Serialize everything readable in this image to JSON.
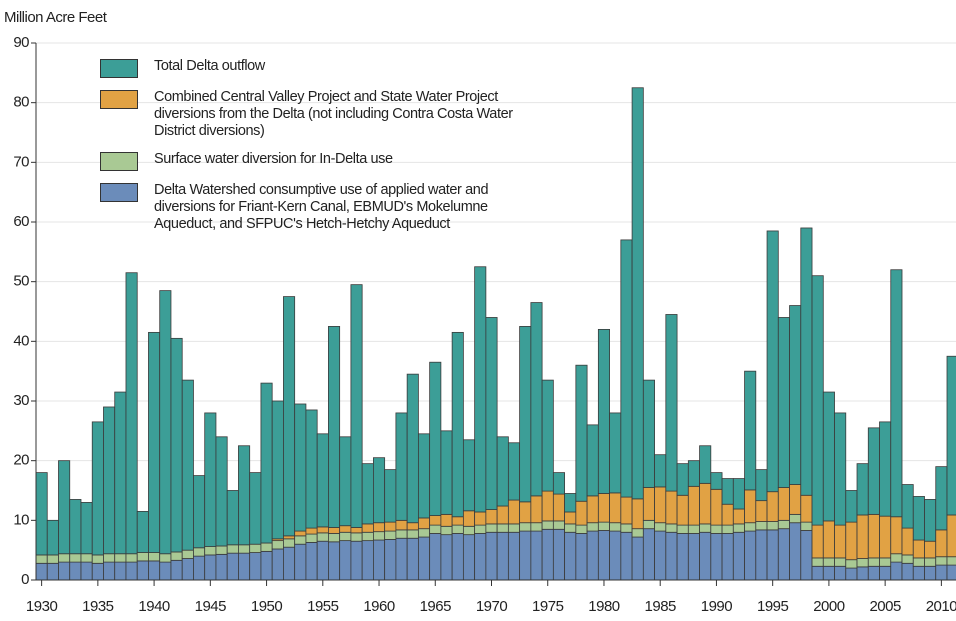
{
  "chart_data": {
    "type": "stacked_bar",
    "y_label": "Million Acre Feet",
    "x": [
      1930,
      1931,
      1932,
      1933,
      1934,
      1935,
      1936,
      1937,
      1938,
      1939,
      1940,
      1941,
      1942,
      1943,
      1944,
      1945,
      1946,
      1947,
      1948,
      1949,
      1950,
      1951,
      1952,
      1953,
      1954,
      1955,
      1956,
      1957,
      1958,
      1959,
      1960,
      1961,
      1962,
      1963,
      1964,
      1965,
      1966,
      1967,
      1968,
      1969,
      1970,
      1971,
      1972,
      1973,
      1974,
      1975,
      1976,
      1977,
      1978,
      1979,
      1980,
      1981,
      1982,
      1983,
      1984,
      1985,
      1986,
      1987,
      1988,
      1989,
      1990,
      1991,
      1992,
      1993,
      1994,
      1995,
      1996,
      1997,
      1998,
      1999,
      2000,
      2001,
      2002,
      2003,
      2004,
      2005,
      2006,
      2007,
      2008,
      2009,
      2010,
      2011
    ],
    "series": [
      {
        "name": "Delta Watershed consumptive use of applied water and diversions for Friant-Kern Canal, EBMUD's Mokelumne Aqueduct, and SFPUC's Hetch-Hetchy Aqueduct",
        "color": "#6b8cba",
        "values": [
          2.8,
          2.8,
          3,
          3,
          3,
          2.8,
          3,
          3,
          3,
          3.2,
          3.2,
          3,
          3.3,
          3.6,
          4,
          4.2,
          4.3,
          4.5,
          4.5,
          4.6,
          4.8,
          5.2,
          5.5,
          6,
          6.3,
          6.5,
          6.4,
          6.6,
          6.5,
          6.6,
          6.7,
          6.8,
          7,
          7,
          7.2,
          7.8,
          7.6,
          7.8,
          7.6,
          7.8,
          8,
          8,
          8,
          8.2,
          8.2,
          8.5,
          8.5,
          8,
          7.8,
          8.2,
          8.3,
          8.2,
          8,
          7.2,
          8.6,
          8.2,
          8,
          7.8,
          7.8,
          8,
          7.8,
          7.8,
          8,
          8.2,
          8.4,
          8.4,
          8.6,
          9.6,
          8.3,
          2.3,
          2.3,
          2.3,
          2,
          2.2,
          2.3,
          2.3,
          3,
          2.8,
          2.3,
          2.3,
          2.5,
          2.5
        ]
      },
      {
        "name": "Surface water diversion for In-Delta use",
        "color": "#a9c994",
        "values": [
          1.4,
          1.4,
          1.4,
          1.4,
          1.4,
          1.4,
          1.4,
          1.4,
          1.4,
          1.4,
          1.4,
          1.4,
          1.4,
          1.4,
          1.4,
          1.4,
          1.4,
          1.4,
          1.4,
          1.4,
          1.4,
          1.4,
          1.4,
          1.4,
          1.4,
          1.4,
          1.4,
          1.4,
          1.4,
          1.4,
          1.4,
          1.4,
          1.4,
          1.4,
          1.4,
          1.4,
          1.4,
          1.4,
          1.4,
          1.4,
          1.4,
          1.4,
          1.4,
          1.4,
          1.4,
          1.4,
          1.4,
          1.4,
          1.4,
          1.4,
          1.4,
          1.4,
          1.4,
          1.4,
          1.4,
          1.4,
          1.4,
          1.4,
          1.4,
          1.4,
          1.4,
          1.4,
          1.4,
          1.4,
          1.4,
          1.4,
          1.4,
          1.4,
          1.4,
          1.4,
          1.4,
          1.4,
          1.4,
          1.4,
          1.4,
          1.4,
          1.4,
          1.4,
          1.4,
          1.4,
          1.4,
          1.4
        ]
      },
      {
        "name": "Combined Central Valley Project and State Water Project diversions from the Delta (not including Contra Costa Water District diversions)",
        "color": "#e1a244",
        "values": [
          0,
          0,
          0,
          0,
          0,
          0,
          0,
          0,
          0,
          0,
          0,
          0,
          0,
          0,
          0,
          0,
          0,
          0,
          0,
          0,
          0,
          0.3,
          0.5,
          0.8,
          1,
          1,
          1,
          1.1,
          0.9,
          1.4,
          1.5,
          1.5,
          1.6,
          1.2,
          1.8,
          1.6,
          2,
          1.4,
          2.6,
          2.2,
          2.4,
          3,
          4,
          3.5,
          4.5,
          5,
          4.5,
          2,
          4,
          4.5,
          4.8,
          5,
          4.5,
          5,
          5.5,
          6,
          5.5,
          5,
          6.5,
          6.8,
          6,
          3.5,
          2.5,
          5.5,
          3.5,
          5,
          5.5,
          5,
          4.5,
          5.5,
          6.2,
          5.5,
          6.3,
          7.3,
          7.3,
          7,
          6.2,
          4.5,
          3,
          2.8,
          4.5,
          7
        ]
      },
      {
        "name": "Total Delta outflow",
        "color": "#3c9e97",
        "values": [
          13.8,
          5.8,
          15.6,
          9.1,
          8.6,
          22.3,
          24.6,
          27.1,
          47.1,
          6.9,
          36.9,
          44.1,
          35.8,
          28.5,
          12.1,
          22.4,
          18.3,
          9.1,
          16.6,
          12,
          26.8,
          23.1,
          40.1,
          21.3,
          19.8,
          15.6,
          33.7,
          14.9,
          40.7,
          10.1,
          10.9,
          8.8,
          18,
          24.9,
          14.1,
          25.7,
          14,
          30.9,
          11.9,
          41.1,
          32.2,
          11.6,
          9.6,
          29.4,
          32.4,
          18.6,
          3.6,
          3.1,
          22.8,
          11.9,
          27.5,
          13.4,
          43.1,
          68.9,
          18,
          5.4,
          29.6,
          5.3,
          4.3,
          6.3,
          2.8,
          4.3,
          5.1,
          19.9,
          5.2,
          43.7,
          28.5,
          30,
          44.8,
          41.8,
          21.6,
          18.8,
          5.3,
          8.6,
          14.5,
          15.8,
          41.4,
          7.3,
          7.3,
          7,
          10.6,
          26.6
        ]
      }
    ],
    "xlim": [
      1929.5,
      2011.3
    ],
    "xticks": [
      1930,
      1935,
      1940,
      1945,
      1950,
      1955,
      1960,
      1965,
      1970,
      1975,
      1980,
      1985,
      1990,
      1995,
      2000,
      2005,
      2010
    ],
    "ylim": [
      0,
      90
    ],
    "yticks": [
      0,
      10,
      20,
      30,
      40,
      50,
      60,
      70,
      80,
      90
    ],
    "grid": true
  }
}
